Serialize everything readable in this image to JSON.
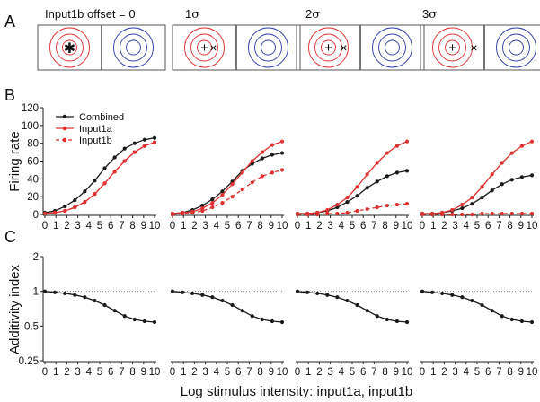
{
  "panel_letters": [
    "A",
    "B",
    "C"
  ],
  "row_a": {
    "titles": [
      {
        "main": "Input1b offset = 0",
        "sigma_prefix": "",
        "sigma_symbol": ""
      },
      {
        "main": "",
        "sigma_prefix": "1",
        "sigma_symbol": "σ"
      },
      {
        "main": "",
        "sigma_prefix": "2",
        "sigma_symbol": "σ"
      },
      {
        "main": "",
        "sigma_prefix": "3",
        "sigma_symbol": "σ"
      }
    ],
    "offsets_sigma": [
      0,
      1,
      2,
      3
    ],
    "left_center_marker": "+",
    "offset_marker": "×",
    "colors": {
      "left_rings": "#e03030",
      "right_rings": "#2f3da8",
      "frame": "#555555"
    }
  },
  "chart_data": [
    {
      "type": "line",
      "panel": "B",
      "ylabel": "Firing rate",
      "ylim": [
        0,
        120
      ],
      "yticks": [
        0,
        20,
        40,
        60,
        80,
        100,
        120
      ],
      "xlim": [
        0,
        10
      ],
      "xticks": [
        0,
        1,
        2,
        3,
        4,
        5,
        6,
        7,
        8,
        9,
        10
      ],
      "legend": {
        "location": "top-left of first subplot",
        "entries": [
          {
            "label": "Combined",
            "color": "#1a1a1a",
            "style": "solid"
          },
          {
            "label": "Input1a",
            "color": "#e03030",
            "style": "solid"
          },
          {
            "label": "Input1b",
            "color": "#e03030",
            "style": "dashed"
          }
        ]
      },
      "subplots": [
        {
          "offset": "0",
          "series": [
            {
              "name": "Combined",
              "values": [
                2,
                4,
                9,
                16,
                26,
                38,
                52,
                64,
                74,
                80,
                84,
                86
              ]
            },
            {
              "name": "Input1a",
              "values": [
                1,
                2,
                4,
                8,
                14,
                23,
                35,
                48,
                60,
                70,
                77,
                81
              ]
            },
            {
              "name": "Input1b",
              "values": [
                1,
                2,
                4,
                8,
                14,
                23,
                35,
                48,
                60,
                70,
                77,
                81
              ]
            }
          ]
        },
        {
          "offset": "1σ",
          "series": [
            {
              "name": "Combined",
              "values": [
                1,
                2,
                5,
                10,
                17,
                26,
                37,
                49,
                57,
                63,
                67,
                69
              ]
            },
            {
              "name": "Input1a",
              "values": [
                1,
                2,
                3,
                7,
                13,
                22,
                34,
                47,
                60,
                70,
                78,
                82
              ]
            },
            {
              "name": "Input1b",
              "values": [
                0,
                1,
                2,
                4,
                8,
                13,
                20,
                28,
                36,
                43,
                47,
                50
              ]
            }
          ]
        },
        {
          "offset": "2σ",
          "series": [
            {
              "name": "Combined",
              "values": [
                1,
                1,
                2,
                4,
                8,
                14,
                21,
                30,
                37,
                43,
                47,
                49
              ]
            },
            {
              "name": "Input1a",
              "values": [
                1,
                1,
                2,
                5,
                11,
                19,
                31,
                45,
                58,
                69,
                77,
                82
              ]
            },
            {
              "name": "Input1b",
              "values": [
                0,
                0,
                0,
                1,
                1,
                2,
                4,
                6,
                8,
                10,
                11,
                12
              ]
            }
          ]
        },
        {
          "offset": "3σ",
          "series": [
            {
              "name": "Combined",
              "values": [
                1,
                1,
                2,
                4,
                7,
                12,
                19,
                27,
                34,
                39,
                42,
                44
              ]
            },
            {
              "name": "Input1a",
              "values": [
                1,
                1,
                2,
                5,
                11,
                19,
                31,
                45,
                58,
                69,
                77,
                82
              ]
            },
            {
              "name": "Input1b",
              "values": [
                0,
                0,
                0,
                0,
                0,
                0,
                1,
                1,
                1,
                1,
                1,
                1
              ]
            }
          ]
        }
      ]
    },
    {
      "type": "line",
      "panel": "C",
      "ylabel": "Additivity index",
      "yscale": "log",
      "ylim": [
        0.25,
        2
      ],
      "yticks": [
        0.25,
        0.5,
        1,
        2
      ],
      "ytick_labels": [
        "0.25",
        "0.5",
        "1",
        "2"
      ],
      "xlim": [
        0,
        10
      ],
      "xticks": [
        0,
        1,
        2,
        3,
        4,
        5,
        6,
        7,
        8,
        9,
        10
      ],
      "reference_line": {
        "y": 1,
        "style": "dotted"
      },
      "subplots": [
        {
          "offset": "0",
          "values": [
            1.0,
            0.98,
            0.96,
            0.93,
            0.89,
            0.83,
            0.76,
            0.68,
            0.61,
            0.57,
            0.55,
            0.54
          ]
        },
        {
          "offset": "1σ",
          "values": [
            1.0,
            0.98,
            0.96,
            0.93,
            0.89,
            0.83,
            0.76,
            0.68,
            0.61,
            0.57,
            0.55,
            0.54
          ]
        },
        {
          "offset": "2σ",
          "values": [
            1.0,
            0.98,
            0.96,
            0.93,
            0.89,
            0.83,
            0.76,
            0.68,
            0.61,
            0.57,
            0.55,
            0.54
          ]
        },
        {
          "offset": "3σ",
          "values": [
            1.0,
            0.98,
            0.96,
            0.93,
            0.89,
            0.83,
            0.76,
            0.68,
            0.61,
            0.57,
            0.55,
            0.54
          ]
        }
      ],
      "xlabel": "Log stimulus intensity:  input1a, input1b"
    }
  ]
}
